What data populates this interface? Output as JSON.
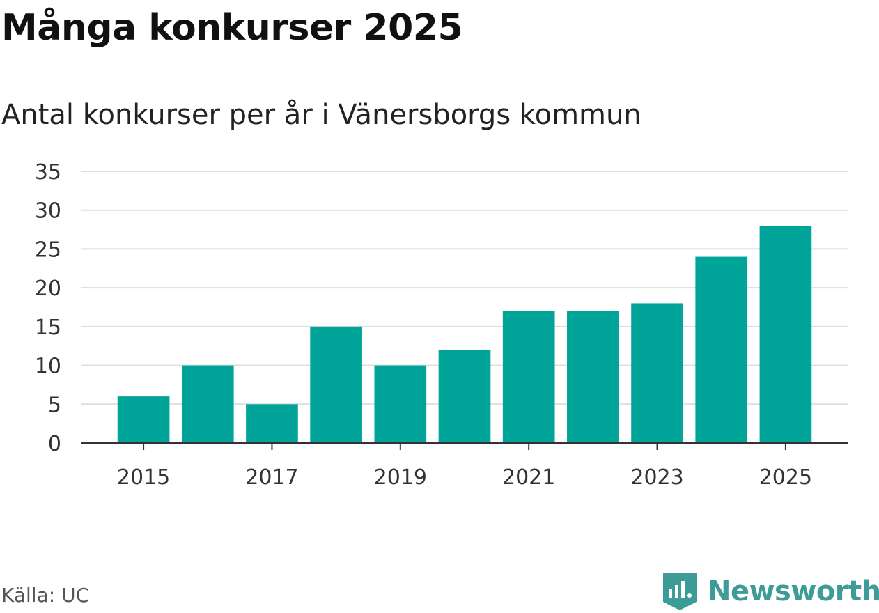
{
  "header": {
    "title": "Många konkurser 2025",
    "subtitle": "Antal konkurser per år i Vänersborgs kommun"
  },
  "footer": {
    "source": "Källa: UC",
    "brand": "Newsworthy"
  },
  "colors": {
    "bar": "#00a499",
    "grid": "#dddddd",
    "axis": "#333333",
    "brand": "#3d9c97"
  },
  "icons": {
    "brand_logo": "newsworthy-logo-icon"
  },
  "chart_data": {
    "type": "bar",
    "title": "Många konkurser 2025",
    "subtitle": "Antal konkurser per år i Vänersborgs kommun",
    "categories": [
      "2015",
      "2016",
      "2017",
      "2018",
      "2019",
      "2020",
      "2021",
      "2022",
      "2023",
      "2024",
      "2025"
    ],
    "values": [
      6,
      10,
      5,
      15,
      10,
      12,
      17,
      17,
      18,
      24,
      28
    ],
    "x_tick_labels": [
      "2015",
      "2017",
      "2019",
      "2021",
      "2023",
      "2025"
    ],
    "y_ticks": [
      0,
      5,
      10,
      15,
      20,
      25,
      30,
      35
    ],
    "ylim": [
      0,
      35
    ],
    "xlabel": "",
    "ylabel": "",
    "grid": true,
    "legend": "none"
  }
}
